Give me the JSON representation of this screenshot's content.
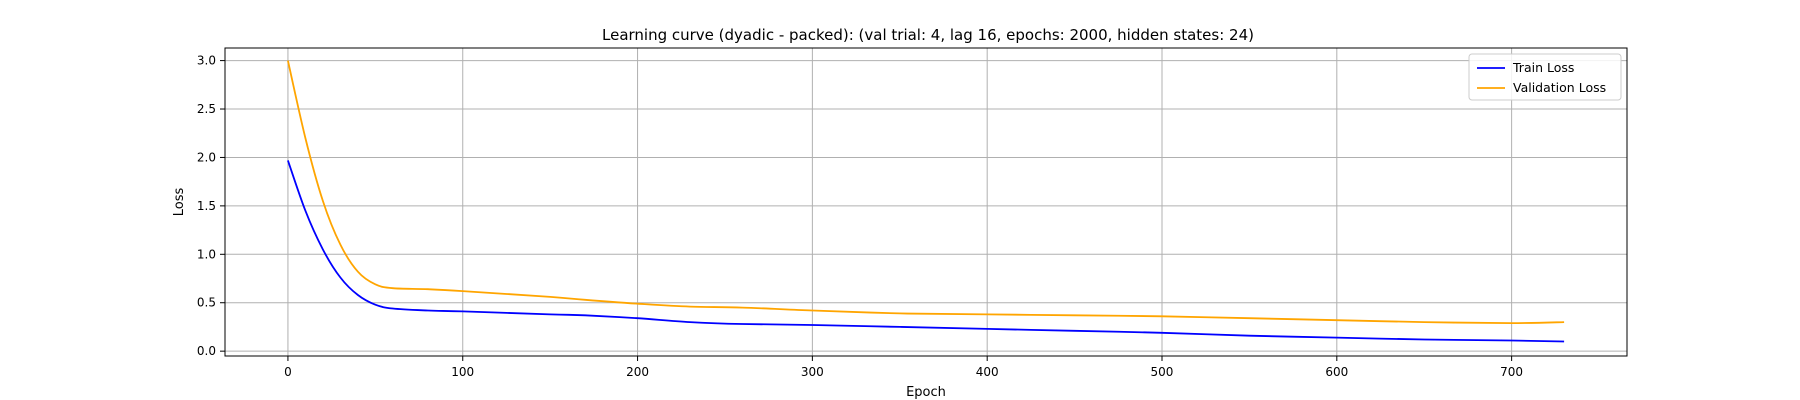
{
  "chart_data": {
    "type": "line",
    "title": "Learning curve (dyadic - packed): (val trial: 4, lag 16, epochs: 2000, hidden states: 24)",
    "xlabel": "Epoch",
    "ylabel": "Loss",
    "xlim": [
      -36,
      766
    ],
    "ylim": [
      -0.05,
      3.13
    ],
    "xticks": [
      0,
      100,
      200,
      300,
      400,
      500,
      600,
      700
    ],
    "yticks": [
      0.0,
      0.5,
      1.0,
      1.5,
      2.0,
      2.5,
      3.0
    ],
    "xtick_labels": [
      "0",
      "100",
      "200",
      "300",
      "400",
      "500",
      "600",
      "700"
    ],
    "ytick_labels": [
      "0.0",
      "0.5",
      "1.0",
      "1.5",
      "2.0",
      "2.5",
      "3.0"
    ],
    "grid": true,
    "legend_position": "top-right",
    "series": [
      {
        "name": "Train Loss",
        "color": "#0000ff",
        "x": [
          0,
          10,
          20,
          30,
          40,
          50,
          60,
          80,
          100,
          150,
          170,
          200,
          230,
          260,
          300,
          350,
          400,
          450,
          500,
          550,
          600,
          650,
          700,
          730
        ],
        "y": [
          1.97,
          1.45,
          1.05,
          0.76,
          0.58,
          0.48,
          0.44,
          0.42,
          0.41,
          0.38,
          0.37,
          0.34,
          0.3,
          0.28,
          0.27,
          0.25,
          0.23,
          0.21,
          0.19,
          0.16,
          0.14,
          0.12,
          0.11,
          0.1
        ]
      },
      {
        "name": "Validation Loss",
        "color": "#ffa500",
        "x": [
          0,
          10,
          20,
          30,
          40,
          50,
          60,
          80,
          100,
          150,
          170,
          200,
          230,
          260,
          300,
          350,
          400,
          450,
          500,
          550,
          600,
          650,
          700,
          730
        ],
        "y": [
          3.0,
          2.2,
          1.55,
          1.1,
          0.82,
          0.69,
          0.65,
          0.64,
          0.62,
          0.56,
          0.53,
          0.49,
          0.46,
          0.45,
          0.42,
          0.39,
          0.38,
          0.37,
          0.36,
          0.34,
          0.32,
          0.3,
          0.29,
          0.3
        ]
      }
    ]
  }
}
